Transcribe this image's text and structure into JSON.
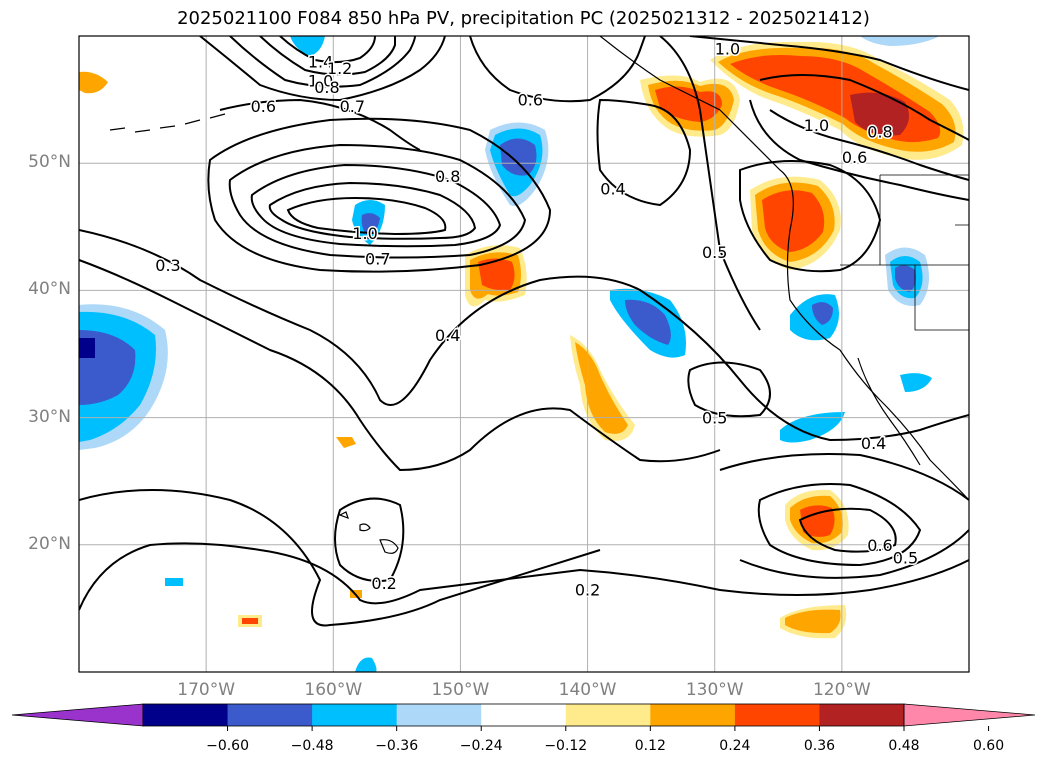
{
  "title": "2025021100 F084 850 hPa PV, precipitation PC (2025021312 - 2025021412)",
  "map": {
    "lon_range": [
      -180,
      -110
    ],
    "lat_range": [
      10,
      60
    ],
    "lat_ticks": [
      {
        "value": 20,
        "label": "20°N"
      },
      {
        "value": 30,
        "label": "30°N"
      },
      {
        "value": 40,
        "label": "40°N"
      },
      {
        "value": 50,
        "label": "50°N"
      }
    ],
    "lon_ticks": [
      {
        "value": -170,
        "label": "170°W"
      },
      {
        "value": -160,
        "label": "160°W"
      },
      {
        "value": -150,
        "label": "150°W"
      },
      {
        "value": -140,
        "label": "140°W"
      },
      {
        "value": -130,
        "label": "130°W"
      },
      {
        "value": -120,
        "label": "120°W"
      }
    ],
    "contour_labels": [
      {
        "text": "1.0",
        "lon": -129,
        "lat": 59
      },
      {
        "text": "1.4",
        "lon": -161,
        "lat": 58
      },
      {
        "text": "1.2",
        "lon": -159.5,
        "lat": 57.5
      },
      {
        "text": "1.0",
        "lon": -161,
        "lat": 56.5
      },
      {
        "text": "0.8",
        "lon": -160.5,
        "lat": 56
      },
      {
        "text": "0.6",
        "lon": -165.5,
        "lat": 54.5
      },
      {
        "text": "0.7",
        "lon": -158.5,
        "lat": 54.5
      },
      {
        "text": "0.6",
        "lon": -144.5,
        "lat": 55
      },
      {
        "text": "1.0",
        "lon": -122,
        "lat": 53
      },
      {
        "text": "0.8",
        "lon": -117,
        "lat": 52.5
      },
      {
        "text": "0.6",
        "lon": -119,
        "lat": 50.5
      },
      {
        "text": "0.8",
        "lon": -151,
        "lat": 49
      },
      {
        "text": "0.4",
        "lon": -138,
        "lat": 48
      },
      {
        "text": "1.0",
        "lon": -157.5,
        "lat": 44.5
      },
      {
        "text": "0.7",
        "lon": -156.5,
        "lat": 42.5
      },
      {
        "text": "0.5",
        "lon": -130,
        "lat": 43
      },
      {
        "text": "0.3",
        "lon": -173,
        "lat": 42
      },
      {
        "text": "0.4",
        "lon": -151,
        "lat": 36.5
      },
      {
        "text": "0.5",
        "lon": -130,
        "lat": 30
      },
      {
        "text": "0.4",
        "lon": -117.5,
        "lat": 28
      },
      {
        "text": "0.6",
        "lon": -117,
        "lat": 20
      },
      {
        "text": "0.5",
        "lon": -115,
        "lat": 19
      },
      {
        "text": "0.2",
        "lon": -156,
        "lat": 17
      },
      {
        "text": "0.2",
        "lon": -140,
        "lat": 16.5
      }
    ]
  },
  "colorbar": {
    "colors": [
      "#9933cc",
      "#00008b",
      "#3b5bcc",
      "#00bfff",
      "#add8f8",
      "#ffffff",
      "#ffea8c",
      "#ffa500",
      "#ff4500",
      "#b22222",
      "#ff88aa"
    ],
    "tick_labels": [
      "−0.60",
      "−0.48",
      "−0.36",
      "−0.24",
      "−0.12",
      "0.12",
      "0.24",
      "0.36",
      "0.48",
      "0.60"
    ]
  }
}
